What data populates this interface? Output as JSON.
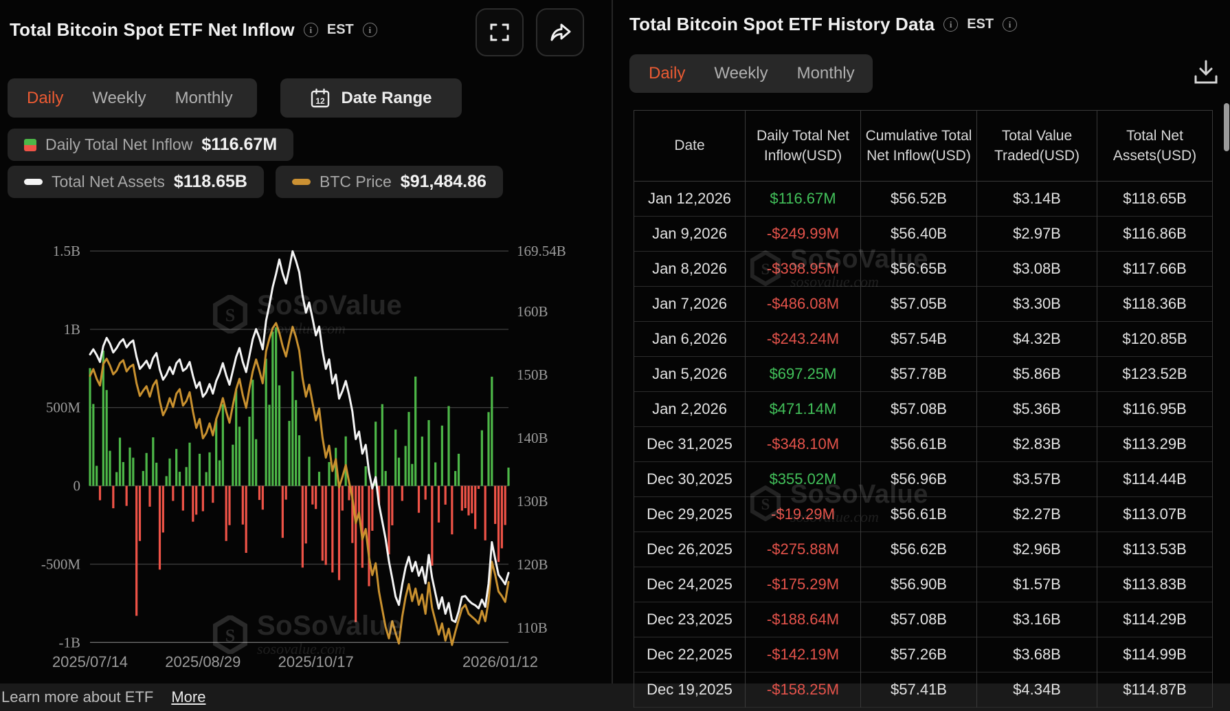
{
  "brand": {
    "name": "SoSoValue",
    "domain": "sosovalue.com"
  },
  "left_panel": {
    "title": "Total Bitcoin Spot ETF Net Inflow",
    "timezone": "EST",
    "tabs": [
      "Daily",
      "Weekly",
      "Monthly"
    ],
    "active_tab": "Daily",
    "date_range_label": "Date Range",
    "legend": [
      {
        "label": "Daily Total Net Inflow",
        "value": "$116.67M"
      },
      {
        "label": "Total Net Assets",
        "value": "$118.65B"
      },
      {
        "label": "BTC Price",
        "value": "$91,484.86"
      }
    ],
    "footer": {
      "text": "Learn more about ETF",
      "link": "More"
    }
  },
  "right_panel": {
    "title": "Total Bitcoin Spot ETF History Data",
    "timezone": "EST",
    "tabs": [
      "Daily",
      "Weekly",
      "Monthly"
    ],
    "active_tab": "Daily",
    "table": {
      "headers": [
        "Date",
        "Daily Total Net Inflow(USD)",
        "Cumulative Total Net Inflow(USD)",
        "Total Value Traded(USD)",
        "Total Net Assets(USD)"
      ],
      "rows": [
        [
          "Jan 12,2026",
          "$116.67M",
          "$56.52B",
          "$3.14B",
          "$118.65B"
        ],
        [
          "Jan 9,2026",
          "-$249.99M",
          "$56.40B",
          "$2.97B",
          "$116.86B"
        ],
        [
          "Jan 8,2026",
          "-$398.95M",
          "$56.65B",
          "$3.08B",
          "$117.66B"
        ],
        [
          "Jan 7,2026",
          "-$486.08M",
          "$57.05B",
          "$3.30B",
          "$118.36B"
        ],
        [
          "Jan 6,2026",
          "-$243.24M",
          "$57.54B",
          "$4.32B",
          "$120.85B"
        ],
        [
          "Jan 5,2026",
          "$697.25M",
          "$57.78B",
          "$5.86B",
          "$123.52B"
        ],
        [
          "Jan 2,2026",
          "$471.14M",
          "$57.08B",
          "$5.36B",
          "$116.95B"
        ],
        [
          "Dec 31,2025",
          "-$348.10M",
          "$56.61B",
          "$2.83B",
          "$113.29B"
        ],
        [
          "Dec 30,2025",
          "$355.02M",
          "$56.96B",
          "$3.57B",
          "$114.44B"
        ],
        [
          "Dec 29,2025",
          "-$19.29M",
          "$56.61B",
          "$2.27B",
          "$113.07B"
        ],
        [
          "Dec 26,2025",
          "-$275.88M",
          "$56.62B",
          "$2.96B",
          "$113.53B"
        ],
        [
          "Dec 24,2025",
          "-$175.29M",
          "$56.90B",
          "$1.57B",
          "$113.83B"
        ],
        [
          "Dec 23,2025",
          "-$188.64M",
          "$57.08B",
          "$3.16B",
          "$114.29B"
        ],
        [
          "Dec 22,2025",
          "-$142.19M",
          "$57.26B",
          "$3.68B",
          "$114.99B"
        ],
        [
          "Dec 19,2025",
          "-$158.25M",
          "$57.41B",
          "$4.34B",
          "$114.87B"
        ]
      ]
    }
  },
  "chart_data": {
    "type": "combo",
    "title": "Total Bitcoin Spot ETF Net Inflow",
    "x_range": [
      "2025/07/14",
      "2026/01/12"
    ],
    "x_labels": [
      {
        "index": 0,
        "label": "2025/07/14"
      },
      {
        "index": 34,
        "label": "2025/08/29"
      },
      {
        "index": 68,
        "label": "2025/10/17"
      },
      {
        "index": 126,
        "label": "2026/01/12"
      }
    ],
    "left_axis": {
      "ticks": [
        {
          "value": 1500,
          "label": "1.5B"
        },
        {
          "value": 1000,
          "label": "1B"
        },
        {
          "value": 500,
          "label": "500M"
        },
        {
          "value": 0,
          "label": "0"
        },
        {
          "value": -500,
          "label": "-500M"
        },
        {
          "value": -1000,
          "label": "-1B"
        }
      ]
    },
    "right_axis": {
      "ticks": [
        {
          "value": 169.54,
          "label": "169.54B"
        },
        {
          "value": 160,
          "label": "160B"
        },
        {
          "value": 150,
          "label": "150B"
        },
        {
          "value": 140,
          "label": "140B"
        },
        {
          "value": 130,
          "label": "130B"
        },
        {
          "value": 120,
          "label": "120B"
        },
        {
          "value": 110,
          "label": "110B"
        }
      ]
    },
    "axes": {
      "bar_usd_m": [
        -1113,
        1610
      ],
      "nav_usd_b": [
        104.87,
        172.26
      ],
      "btc_usd_k": [
        80.97,
        138.3
      ]
    },
    "colors": {
      "bar_pos": "#4db848",
      "bar_neg": "#ef5347",
      "nav": "#f5f5f5",
      "btc": "#c9912f"
    },
    "series": [
      {
        "name": "Daily Total Net Inflow",
        "type": "bar",
        "unit": "USD millions",
        "values": [
          752,
          523,
          128,
          -92,
          864,
          612,
          224,
          -143,
          88,
          308,
          152,
          -128,
          245,
          180,
          -830,
          -352,
          95,
          210,
          -133,
          310,
          148,
          -535,
          -298,
          62,
          175,
          -96,
          236,
          90,
          -158,
          120,
          276,
          -229,
          -184,
          205,
          -162,
          88,
          214,
          -108,
          428,
          163,
          522,
          -352,
          -251,
          263,
          615,
          378,
          -247,
          -428,
          442,
          678,
          298,
          -90,
          -152,
          812,
          518,
          986,
          1012,
          642,
          -332,
          -88,
          415,
          732,
          548,
          323,
          -522,
          -368,
          186,
          -119,
          -148,
          90,
          -478,
          -505,
          152,
          -553,
          243,
          -602,
          -158,
          316,
          -92,
          -365,
          -870,
          -190,
          -523,
          125,
          -641,
          -287,
          410,
          -118,
          522,
          95,
          -438,
          -252,
          360,
          180,
          -96,
          255,
          472,
          140,
          698,
          -172,
          315,
          -88,
          420,
          -510,
          150,
          -234,
          385,
          -120,
          510,
          -310,
          95,
          205,
          -158.25,
          -142.19,
          -188.64,
          -175.29,
          -275.88,
          -19.29,
          355.02,
          -348.1,
          471.14,
          697.25,
          -243.24,
          -486.08,
          -398.95,
          -249.99,
          116.67
        ]
      },
      {
        "name": "Total Net Assets",
        "type": "line",
        "unit": "USD billions",
        "values": [
          153.2,
          154,
          153.1,
          152,
          154.5,
          155.8,
          154.9,
          153.5,
          154.2,
          155.1,
          155.6,
          154.3,
          155,
          155.4,
          152.8,
          150.9,
          151.5,
          152.2,
          151,
          152.6,
          153.4,
          150.8,
          149.2,
          150,
          151.2,
          150.1,
          151.8,
          152.4,
          150.6,
          151,
          152,
          149.8,
          147.9,
          148.8,
          146.5,
          147.2,
          148.5,
          147,
          149,
          150.2,
          151.8,
          149.9,
          148.4,
          150.6,
          152.8,
          154.2,
          152,
          150.4,
          153,
          155.6,
          157.2,
          155.8,
          154,
          158.5,
          161,
          163.8,
          165.9,
          168.2,
          166,
          164.4,
          166.8,
          169.5,
          168,
          166.2,
          162.5,
          159.8,
          161.4,
          158.9,
          156.2,
          157.6,
          153.8,
          150.9,
          152.4,
          148.6,
          150,
          146.2,
          147.4,
          149,
          146.8,
          144.2,
          139.8,
          141,
          137.5,
          138.9,
          134.6,
          132,
          133.8,
          129.5,
          126.8,
          124,
          120.5,
          117.8,
          114.9,
          113.6,
          116.8,
          119.5,
          121.2,
          118.9,
          120.4,
          118.2,
          119.6,
          117,
          121.5,
          117.9,
          115.4,
          113,
          114.8,
          112.2,
          113.9,
          111.2,
          110.9,
          112.6,
          114.87,
          114.99,
          114.29,
          113.83,
          113.53,
          113.07,
          114.44,
          113.29,
          116.95,
          123.52,
          120.85,
          118.36,
          117.66,
          116.86,
          118.65
        ]
      },
      {
        "name": "BTC Price",
        "type": "line",
        "unit": "USD thousands",
        "values": [
          119.2,
          120.1,
          118.8,
          117.9,
          120.8,
          121.5,
          120.6,
          119.4,
          119.9,
          120.9,
          121.3,
          119.8,
          120.4,
          120.7,
          118.2,
          116.5,
          117.2,
          117.8,
          116.4,
          117.9,
          118.6,
          115.8,
          113.9,
          114.8,
          116.2,
          115,
          116.8,
          117.4,
          115.2,
          115.8,
          117,
          114.4,
          112.2,
          113.4,
          110.8,
          111.5,
          112.8,
          111.2,
          113.4,
          114.6,
          116.2,
          114.4,
          112.9,
          115.2,
          117.4,
          118.8,
          116.6,
          114.9,
          117.5,
          119.8,
          121.4,
          119.9,
          118.2,
          122.5,
          124.2,
          125.6,
          126.3,
          125,
          123.2,
          121.8,
          123.9,
          125.8,
          124.4,
          122.6,
          118.9,
          116.4,
          118,
          115.6,
          113.2,
          114.8,
          110.9,
          108.2,
          109.8,
          106.4,
          108,
          104.2,
          105.6,
          107.2,
          104.9,
          102.8,
          99.4,
          100.8,
          97.2,
          98.6,
          94.8,
          92.4,
          94,
          90.2,
          87.8,
          85.4,
          83.9,
          86.2,
          84.6,
          83.2,
          86.8,
          89.4,
          91.2,
          88.9,
          90.6,
          88.4,
          89.8,
          87.2,
          91.4,
          88,
          86.2,
          84.4,
          85.9,
          83.6,
          85.2,
          83,
          84.8,
          86.4,
          87.9,
          88.4,
          87.2,
          86.8,
          86.4,
          85.9,
          87.6,
          86.2,
          88.9,
          94.2,
          92.4,
          90.2,
          89.6,
          88.8,
          91.48
        ]
      }
    ]
  }
}
